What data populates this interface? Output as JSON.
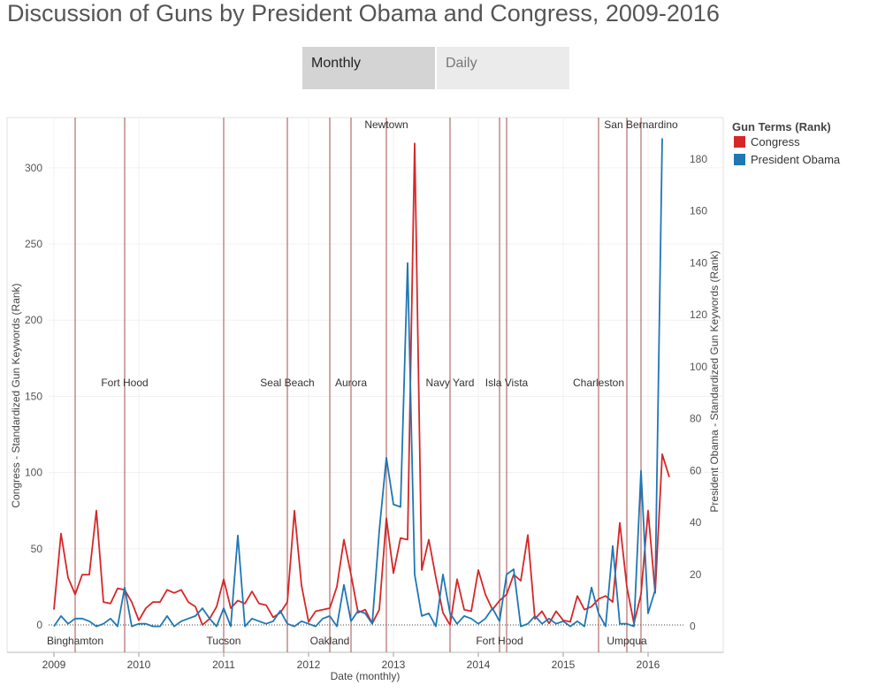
{
  "header": {
    "title": "Discussion of Guns by President Obama and Congress, 2009-2016"
  },
  "tabs": [
    {
      "label": "Monthly",
      "active": true
    },
    {
      "label": "Daily",
      "active": false
    }
  ],
  "legend": {
    "title": "Gun Terms (Rank)",
    "items": [
      {
        "label": "Congress",
        "color": "#d62728"
      },
      {
        "label": "President Obama",
        "color": "#1f77b4"
      }
    ]
  },
  "chart_data": {
    "type": "line",
    "xlabel": "Date (monthly)",
    "ylabel_left": "Congress - Standardized Gun Keywords (Rank)",
    "ylabel_right": "President Obama - Standardized Gun Keywords (Rank)",
    "xlim": [
      "2008-10",
      "2016-06"
    ],
    "ylim_left": [
      -18,
      333
    ],
    "ylim_right": [
      -10,
      196
    ],
    "x_ticks": [
      "2009",
      "2010",
      "2011",
      "2012",
      "2013",
      "2014",
      "2015",
      "2016"
    ],
    "y_ticks_left": [
      0,
      50,
      100,
      150,
      200,
      250,
      300
    ],
    "y_ticks_right": [
      0,
      20,
      40,
      60,
      80,
      100,
      120,
      140,
      160,
      180
    ],
    "start": "2009-01",
    "series": [
      {
        "name": "Congress",
        "color": "#d62728",
        "axis": "left",
        "values": [
          10,
          60,
          31,
          20,
          33,
          33,
          75,
          15,
          14,
          24,
          23,
          15,
          3,
          11,
          15,
          15,
          23,
          21,
          23,
          15,
          12,
          0,
          4,
          12,
          30,
          11,
          16,
          14,
          22,
          14,
          13,
          5,
          8,
          15,
          75,
          26,
          2,
          9,
          10,
          11,
          25,
          56,
          33,
          8,
          10,
          1,
          10,
          70,
          34,
          57,
          56,
          316,
          36,
          56,
          31,
          8,
          0,
          30,
          10,
          9,
          36,
          20,
          10,
          16,
          20,
          33,
          29,
          59,
          4,
          9,
          1,
          9,
          3,
          2,
          19,
          10,
          12,
          17,
          19,
          15,
          67,
          25,
          1,
          20,
          75,
          21,
          112,
          97
        ]
      },
      {
        "name": "President Obama",
        "color": "#1f77b4",
        "axis": "right",
        "values": [
          0,
          4,
          1,
          3,
          3,
          2,
          0,
          1,
          3,
          0,
          15,
          0,
          1,
          1,
          0,
          0,
          4,
          0,
          2,
          3,
          4,
          7,
          3,
          0,
          7,
          0,
          35,
          0,
          3,
          2,
          1,
          2,
          6,
          1,
          0,
          2,
          1,
          0,
          3,
          4,
          0,
          16,
          2,
          6,
          5,
          1,
          37,
          65,
          47,
          46,
          140,
          20,
          4,
          5,
          0,
          20,
          5,
          1,
          4,
          3,
          1,
          3,
          7,
          2,
          20,
          22,
          0,
          1,
          4,
          1,
          3,
          1,
          2,
          0,
          2,
          0,
          15,
          5,
          0,
          31,
          1,
          1,
          0,
          60,
          5,
          14,
          188
        ]
      }
    ],
    "events": [
      {
        "name": "Binghamton",
        "date": "2009-04",
        "label_pos": "bottom"
      },
      {
        "name": "Fort Hood",
        "date": "2009-11",
        "label_pos": "mid"
      },
      {
        "name": "Tucson",
        "date": "2011-01",
        "label_pos": "bottom"
      },
      {
        "name": "Seal Beach",
        "date": "2011-10",
        "label_pos": "mid"
      },
      {
        "name": "Oakland",
        "date": "2012-04",
        "label_pos": "bottom"
      },
      {
        "name": "Aurora",
        "date": "2012-07",
        "label_pos": "mid"
      },
      {
        "name": "Newtown",
        "date": "2012-12",
        "label_pos": "top"
      },
      {
        "name": "Navy Yard",
        "date": "2013-09",
        "label_pos": "mid"
      },
      {
        "name": "Fort Hood",
        "date": "2014-04",
        "label_pos": "bottom"
      },
      {
        "name": "Isla Vista",
        "date": "2014-05",
        "label_pos": "mid"
      },
      {
        "name": "Charleston",
        "date": "2015-06",
        "label_pos": "mid"
      },
      {
        "name": "Umpqua",
        "date": "2015-10",
        "label_pos": "bottom"
      },
      {
        "name": "San Bernardino",
        "date": "2015-12",
        "label_pos": "top"
      }
    ]
  }
}
